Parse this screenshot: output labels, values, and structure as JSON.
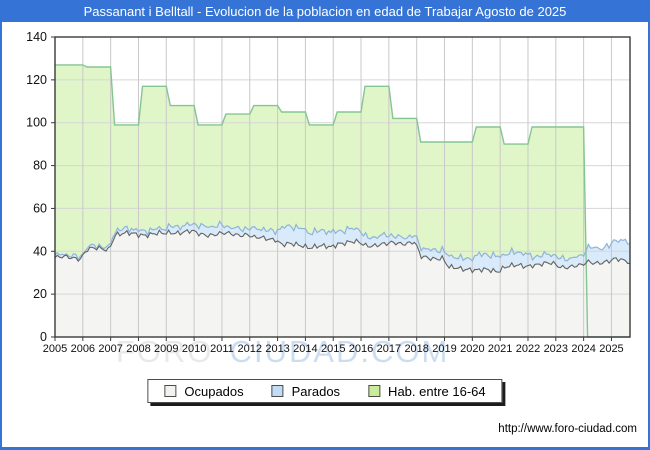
{
  "window": {
    "title": "Passanant i Belltall - Evolucion de la poblacion en edad de Trabajar Agosto de 2025"
  },
  "watermark": {
    "part1": "FORO",
    "part2": "CIUDAD.COM"
  },
  "footer": {
    "url": "http://www.foro-ciudad.com"
  },
  "colors": {
    "titlebar": "#3673d6",
    "frame_border": "#3673d6",
    "plot_frame": "#3a3a3a",
    "grid_h": "#d6d6d6",
    "grid_v": "#c9c9c9",
    "hab_fill": "#e0f5c8",
    "hab_line": "#85c593",
    "par_fill": "#d9eafa",
    "par_line": "#8fb3da",
    "ocu_fill": "#f4f4f2",
    "ocu_line": "#636363",
    "watermark_gray": "#e9e9e9",
    "watermark_blue": "#ccddf2",
    "tick_label": "#111111"
  },
  "legend": {
    "items": [
      {
        "label": "Ocupados",
        "swatch": "#f2f2f0"
      },
      {
        "label": "Parados",
        "swatch": "#c3dcf5"
      },
      {
        "label": "Hab. entre 16-64",
        "swatch": "#c8ec99"
      }
    ]
  },
  "chart_data": {
    "type": "area",
    "title": "Passanant i Belltall - Evolucion de la poblacion en edad de Trabajar Agosto de 2025",
    "xlabel": "",
    "ylabel": "",
    "x": [
      2005,
      2006,
      2007,
      2008,
      2009,
      2010,
      2011,
      2012,
      2013,
      2014,
      2015,
      2016,
      2017,
      2018,
      2019,
      2020,
      2021,
      2022,
      2023,
      2024,
      2025
    ],
    "series": [
      {
        "name": "Ocupados",
        "values": [
          37,
          41,
          48,
          48,
          49,
          48,
          48,
          46,
          43,
          42,
          44,
          43,
          44,
          37,
          32,
          31,
          33,
          34,
          33,
          35,
          36
        ]
      },
      {
        "name": "Parados",
        "values": [
          1,
          1,
          2,
          2,
          3,
          4,
          3,
          4,
          8,
          7,
          6,
          4,
          3,
          4,
          5,
          7,
          6,
          4,
          4,
          7,
          9
        ],
        "stacked_on": "Ocupados"
      },
      {
        "name": "Hab. entre 16-64",
        "values": [
          127,
          126,
          99,
          117,
          108,
          99,
          104,
          108,
          105,
          99,
          105,
          117,
          102,
          91,
          91,
          98,
          90,
          98,
          98,
          0,
          0
        ]
      }
    ],
    "ylim": [
      0,
      140
    ],
    "yticks": [
      0,
      20,
      40,
      60,
      80,
      100,
      120,
      140
    ],
    "grid": true,
    "legend_position": "bottom",
    "months_in_last_year": 8,
    "notes": "Monthly employment lines wiggle around annual levels; Hab. entre 16-64 series ends (drops to 0) at start of 2024."
  }
}
